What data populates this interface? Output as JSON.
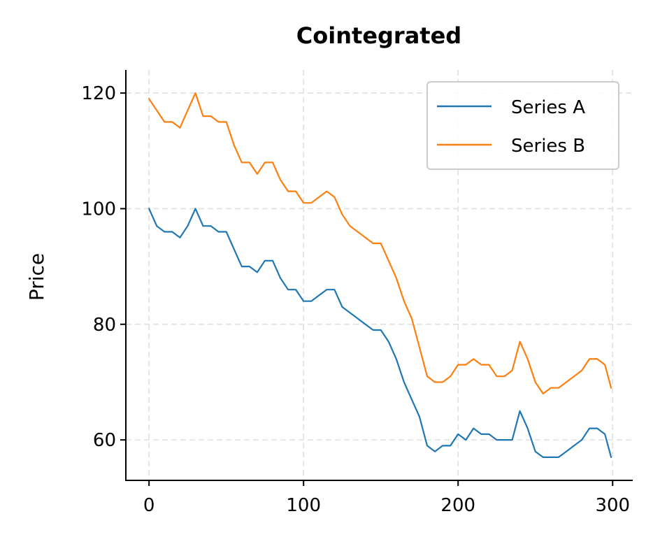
{
  "chart_data": {
    "type": "line",
    "title": "Cointegrated",
    "xlabel": "",
    "ylabel": "Price",
    "xlim": [
      -15,
      313
    ],
    "ylim": [
      53,
      124
    ],
    "xticks": [
      0,
      100,
      200,
      300
    ],
    "xtick_labels": [
      "0",
      "100",
      "200",
      "300"
    ],
    "yticks": [
      60,
      80,
      100,
      120
    ],
    "ytick_labels": [
      "60",
      "80",
      "100",
      "120"
    ],
    "grid": true,
    "legend_position": "upper right",
    "series": [
      {
        "name": "Series A",
        "color": "#1f77b4",
        "x": [
          0,
          5,
          10,
          15,
          20,
          25,
          30,
          35,
          40,
          45,
          50,
          55,
          60,
          65,
          70,
          75,
          80,
          85,
          90,
          95,
          100,
          105,
          110,
          115,
          120,
          125,
          130,
          135,
          140,
          145,
          150,
          155,
          160,
          165,
          170,
          175,
          180,
          185,
          190,
          195,
          200,
          205,
          210,
          215,
          220,
          225,
          230,
          235,
          240,
          245,
          250,
          255,
          260,
          265,
          270,
          275,
          280,
          285,
          290,
          295,
          299
        ],
        "y": [
          100,
          97,
          96,
          96,
          95,
          97,
          100,
          97,
          97,
          96,
          96,
          93,
          90,
          90,
          89,
          91,
          91,
          88,
          86,
          86,
          84,
          84,
          85,
          86,
          86,
          83,
          82,
          81,
          80,
          79,
          79,
          77,
          74,
          70,
          67,
          64,
          59,
          58,
          59,
          59,
          61,
          60,
          62,
          61,
          61,
          60,
          60,
          60,
          65,
          62,
          58,
          57,
          57,
          57,
          58,
          59,
          60,
          62,
          62,
          61,
          57
        ]
      },
      {
        "name": "Series B",
        "color": "#ff7f0e",
        "x": [
          0,
          5,
          10,
          15,
          20,
          25,
          30,
          35,
          40,
          45,
          50,
          55,
          60,
          65,
          70,
          75,
          80,
          85,
          90,
          95,
          100,
          105,
          110,
          115,
          120,
          125,
          130,
          135,
          140,
          145,
          150,
          155,
          160,
          165,
          170,
          175,
          180,
          185,
          190,
          195,
          200,
          205,
          210,
          215,
          220,
          225,
          230,
          235,
          240,
          245,
          250,
          255,
          260,
          265,
          270,
          275,
          280,
          285,
          290,
          295,
          299
        ],
        "y": [
          119,
          117,
          115,
          115,
          114,
          117,
          120,
          116,
          116,
          115,
          115,
          111,
          108,
          108,
          106,
          108,
          108,
          105,
          103,
          103,
          101,
          101,
          102,
          103,
          102,
          99,
          97,
          96,
          95,
          94,
          94,
          91,
          88,
          84,
          81,
          76,
          71,
          70,
          70,
          71,
          73,
          73,
          74,
          73,
          73,
          71,
          71,
          72,
          77,
          74,
          70,
          68,
          69,
          69,
          70,
          71,
          72,
          74,
          74,
          73,
          69
        ]
      }
    ]
  }
}
